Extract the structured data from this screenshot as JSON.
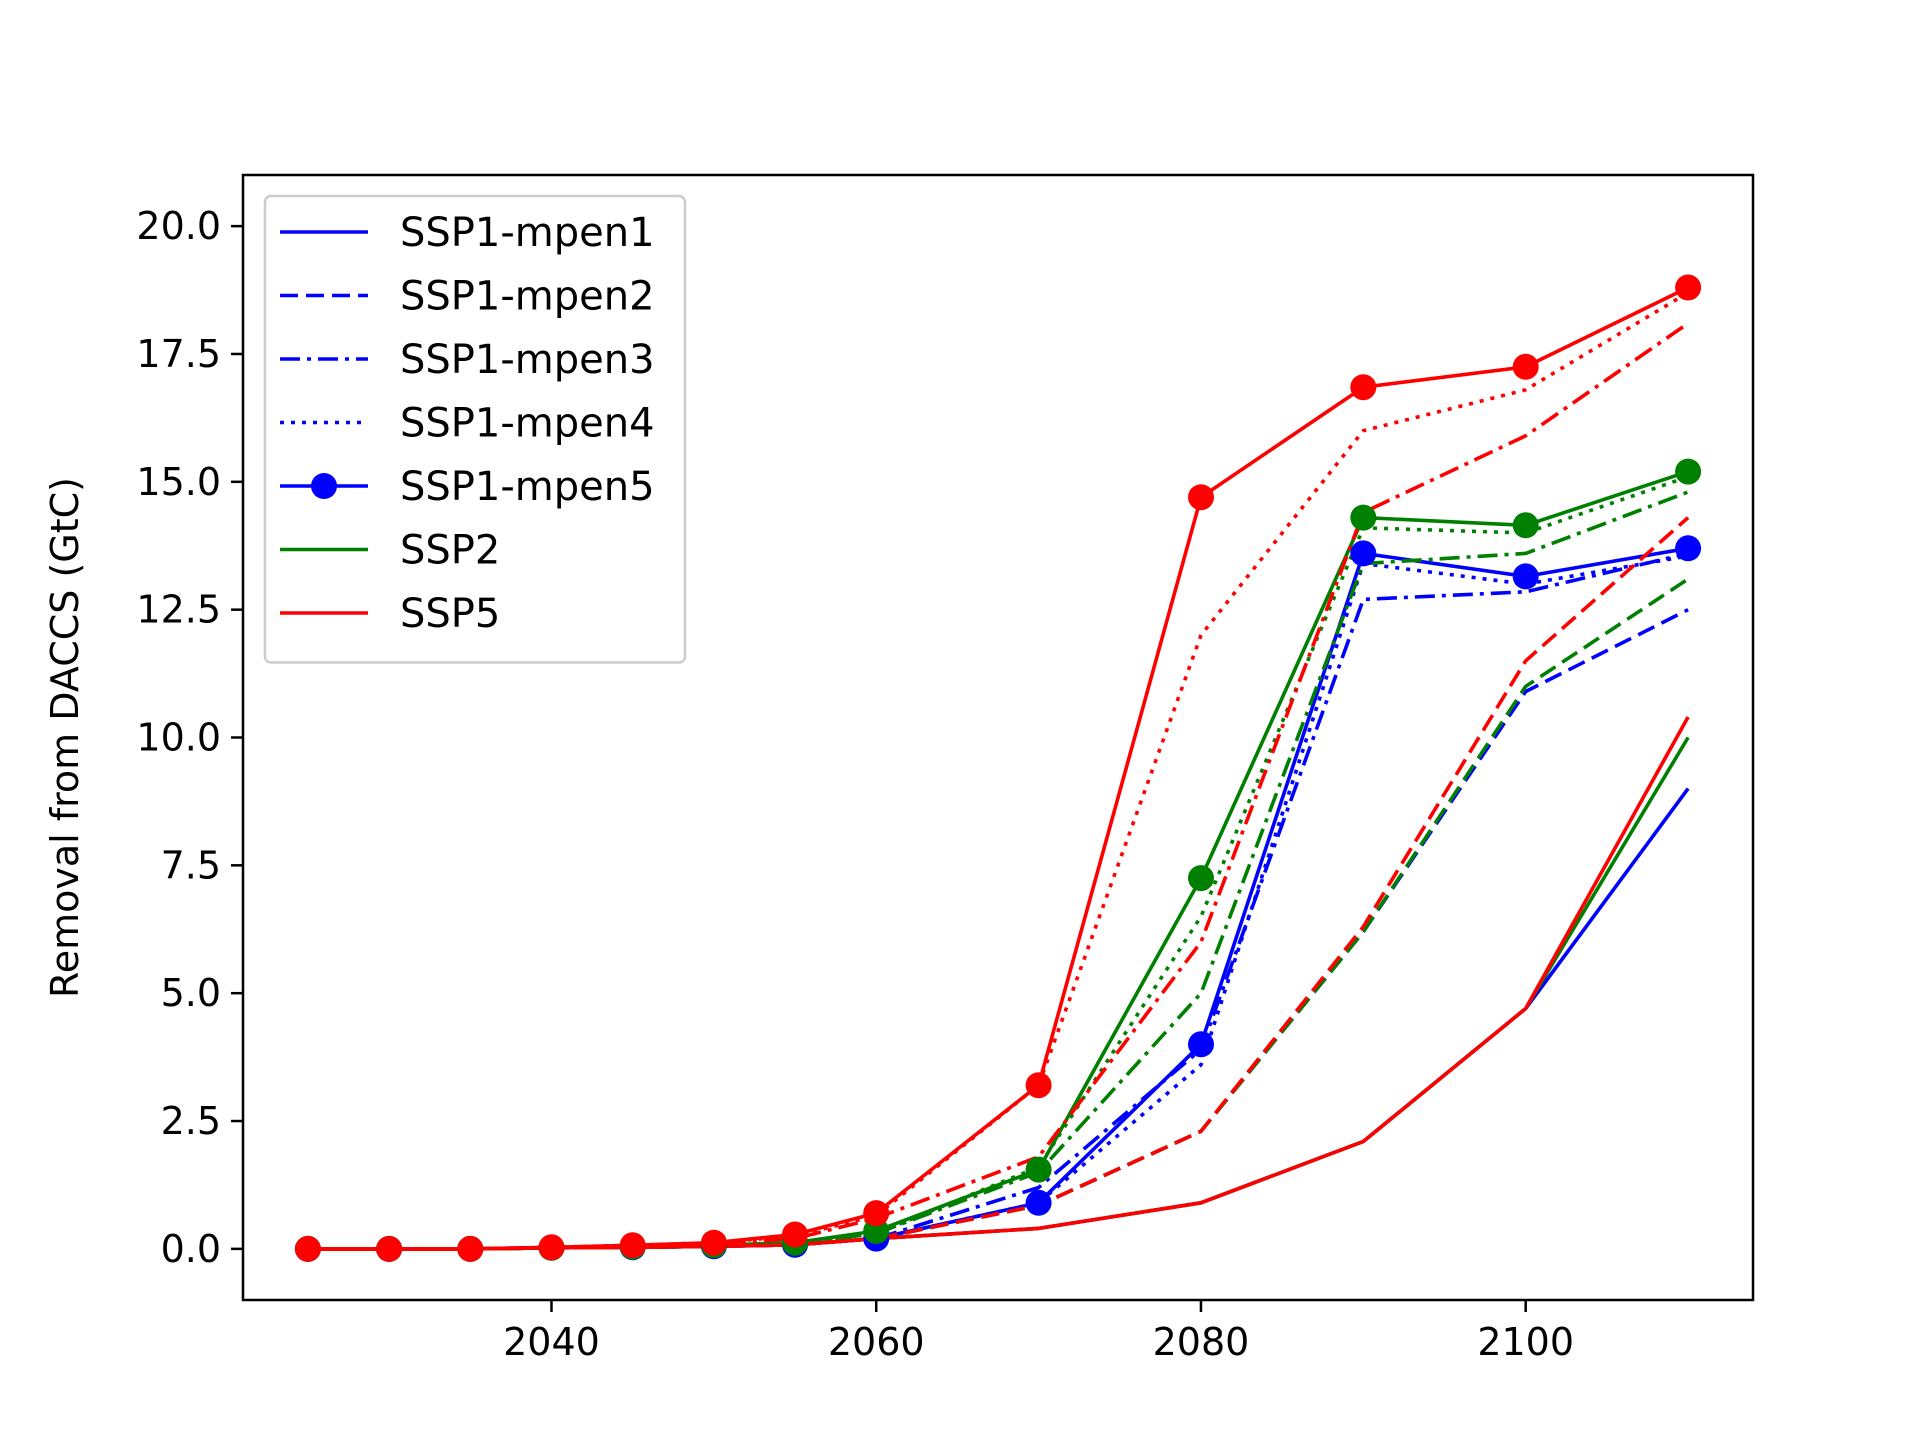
{
  "chart_data": {
    "type": "line",
    "title": "",
    "xlabel": "",
    "ylabel": "Removal from DACCS (GtC)",
    "xlim": [
      2021,
      2114
    ],
    "ylim": [
      -1.0,
      21.0
    ],
    "xticks": [
      2040,
      2060,
      2080,
      2100
    ],
    "xtick_labels": [
      "2040",
      "2060",
      "2080",
      "2100"
    ],
    "yticks": [
      0.0,
      2.5,
      5.0,
      7.5,
      10.0,
      12.5,
      15.0,
      17.5,
      20.0
    ],
    "ytick_labels": [
      "0.0",
      "2.5",
      "5.0",
      "7.5",
      "10.0",
      "12.5",
      "15.0",
      "17.5",
      "20.0"
    ],
    "grid": false,
    "legend_position": "top-left",
    "x": [
      2025,
      2030,
      2035,
      2040,
      2045,
      2050,
      2055,
      2060,
      2070,
      2080,
      2090,
      2100,
      2110
    ],
    "legend": [
      {
        "label": "SSP1-mpen1",
        "color": "#0000ff",
        "style": "solid",
        "marker": false
      },
      {
        "label": "SSP1-mpen2",
        "color": "#0000ff",
        "style": "dashed",
        "marker": false
      },
      {
        "label": "SSP1-mpen3",
        "color": "#0000ff",
        "style": "dashdot",
        "marker": false
      },
      {
        "label": "SSP1-mpen4",
        "color": "#0000ff",
        "style": "dotted",
        "marker": false
      },
      {
        "label": "SSP1-mpen5",
        "color": "#0000ff",
        "style": "solid",
        "marker": true
      },
      {
        "label": "SSP2",
        "color": "#008000",
        "style": "solid",
        "marker": false
      },
      {
        "label": "SSP5",
        "color": "#ff0000",
        "style": "solid",
        "marker": false
      }
    ],
    "series": [
      {
        "scenario": "SSP1",
        "variant": "mpen1",
        "color": "#0000ff",
        "style": "solid",
        "marker": false,
        "values": [
          0,
          0,
          0,
          0.02,
          0.03,
          0.05,
          0.08,
          0.2,
          0.4,
          0.9,
          2.1,
          4.7,
          9.0
        ]
      },
      {
        "scenario": "SSP1",
        "variant": "mpen2",
        "color": "#0000ff",
        "style": "dashed",
        "marker": false,
        "values": [
          0,
          0,
          0,
          0.02,
          0.03,
          0.05,
          0.08,
          0.2,
          0.85,
          2.3,
          6.2,
          10.9,
          12.5
        ]
      },
      {
        "scenario": "SSP1",
        "variant": "mpen3",
        "color": "#0000ff",
        "style": "dashdot",
        "marker": false,
        "values": [
          0,
          0,
          0,
          0.02,
          0.03,
          0.05,
          0.08,
          0.2,
          1.2,
          3.9,
          12.7,
          12.85,
          13.6
        ]
      },
      {
        "scenario": "SSP1",
        "variant": "mpen4",
        "color": "#0000ff",
        "style": "dotted",
        "marker": false,
        "values": [
          0,
          0,
          0,
          0.02,
          0.03,
          0.05,
          0.08,
          0.2,
          0.9,
          3.6,
          13.4,
          13.0,
          13.55
        ]
      },
      {
        "scenario": "SSP1",
        "variant": "mpen5",
        "color": "#0000ff",
        "style": "solid",
        "marker": true,
        "values": [
          0,
          0,
          0,
          0.02,
          0.03,
          0.05,
          0.08,
          0.2,
          0.9,
          4.0,
          13.6,
          13.15,
          13.7
        ]
      },
      {
        "scenario": "SSP2",
        "variant": "mpen1",
        "color": "#008000",
        "style": "solid",
        "marker": false,
        "values": [
          0,
          0,
          0,
          0.02,
          0.03,
          0.05,
          0.08,
          0.2,
          0.4,
          0.9,
          2.1,
          4.7,
          10.0
        ]
      },
      {
        "scenario": "SSP2",
        "variant": "mpen2",
        "color": "#008000",
        "style": "dashed",
        "marker": false,
        "values": [
          0,
          0,
          0,
          0.02,
          0.03,
          0.05,
          0.08,
          0.2,
          0.85,
          2.3,
          6.2,
          11.0,
          13.1
        ]
      },
      {
        "scenario": "SSP2",
        "variant": "mpen3",
        "color": "#008000",
        "style": "dashdot",
        "marker": false,
        "values": [
          0,
          0,
          0,
          0.02,
          0.03,
          0.06,
          0.1,
          0.3,
          1.5,
          5.0,
          13.4,
          13.6,
          14.8
        ]
      },
      {
        "scenario": "SSP2",
        "variant": "mpen4",
        "color": "#008000",
        "style": "dotted",
        "marker": false,
        "values": [
          0,
          0,
          0,
          0.02,
          0.03,
          0.06,
          0.1,
          0.3,
          1.6,
          6.5,
          14.1,
          14.0,
          15.1
        ]
      },
      {
        "scenario": "SSP2",
        "variant": "mpen5",
        "color": "#008000",
        "style": "solid",
        "marker": true,
        "values": [
          0,
          0,
          0,
          0.02,
          0.04,
          0.07,
          0.12,
          0.35,
          1.55,
          7.25,
          14.3,
          14.15,
          15.2
        ]
      },
      {
        "scenario": "SSP5",
        "variant": "mpen1",
        "color": "#ff0000",
        "style": "solid",
        "marker": false,
        "values": [
          0,
          0,
          0,
          0.02,
          0.03,
          0.05,
          0.08,
          0.2,
          0.4,
          0.9,
          2.1,
          4.7,
          10.4
        ]
      },
      {
        "scenario": "SSP5",
        "variant": "mpen2",
        "color": "#ff0000",
        "style": "dashed",
        "marker": false,
        "values": [
          0,
          0,
          0,
          0.02,
          0.03,
          0.05,
          0.08,
          0.2,
          0.85,
          2.3,
          6.3,
          11.5,
          14.3
        ]
      },
      {
        "scenario": "SSP5",
        "variant": "mpen3",
        "color": "#ff0000",
        "style": "dashdot",
        "marker": false,
        "values": [
          0,
          0,
          0,
          0.03,
          0.06,
          0.1,
          0.2,
          0.6,
          1.8,
          6.0,
          14.4,
          15.9,
          18.1
        ]
      },
      {
        "scenario": "SSP5",
        "variant": "mpen4",
        "color": "#ff0000",
        "style": "dotted",
        "marker": false,
        "values": [
          0,
          0,
          0,
          0.03,
          0.07,
          0.12,
          0.25,
          0.65,
          3.2,
          12.0,
          16.0,
          16.8,
          18.7
        ]
      },
      {
        "scenario": "SSP5",
        "variant": "mpen5",
        "color": "#ff0000",
        "style": "solid",
        "marker": true,
        "values": [
          0,
          0,
          0,
          0.03,
          0.07,
          0.12,
          0.28,
          0.7,
          3.2,
          14.7,
          16.85,
          17.25,
          18.8
        ]
      }
    ]
  }
}
